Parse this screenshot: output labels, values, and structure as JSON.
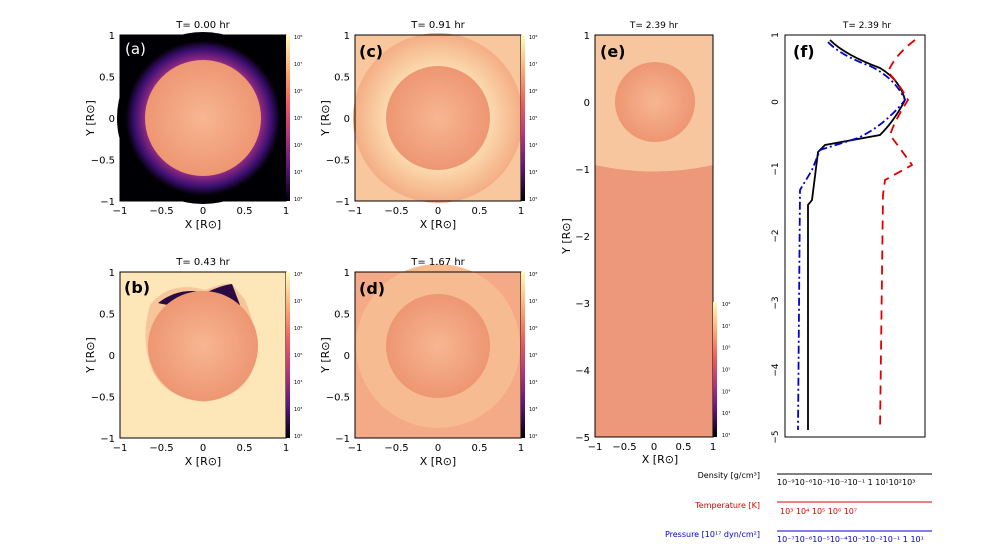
{
  "panels": {
    "a": {
      "label": "(a)",
      "title": "T= 0.00 hr"
    },
    "b": {
      "label": "(b)",
      "title": "T= 0.43 hr"
    },
    "c": {
      "label": "(c)",
      "title": "T= 0.91 hr"
    },
    "d": {
      "label": "(d)",
      "title": "T= 1.67 hr"
    },
    "e": {
      "label": "(e)",
      "title": "T= 2.39 hr"
    },
    "f": {
      "label": "(f)",
      "title": "T= 2.39 hr"
    }
  },
  "axes": {
    "x_label": "X [R",
    "y_label": "Y [R",
    "sun_symbol": "⊙",
    "x_ticks": [
      "−1",
      "−0.5",
      "0",
      "0.5",
      "1"
    ],
    "y_ticks": [
      "1",
      "0.5",
      "0",
      "−0.5",
      "−1"
    ],
    "e_y_ticks": [
      "1",
      "0",
      "−1",
      "−2",
      "−3",
      "−4",
      "−5"
    ],
    "f_y_ticks": [
      "1",
      "0",
      "−1",
      "−2",
      "−3",
      "−4",
      "−5"
    ]
  },
  "colorbar": {
    "ticks": [
      "10⁸",
      "10⁷",
      "10⁶",
      "10⁵",
      "10⁴",
      "10³",
      "10²"
    ]
  },
  "legend": {
    "density": "Density [g/cm³]",
    "density_ticks": "10⁻⁹10⁻⁶10⁻³10⁻²10⁻¹ 1  10¹10²10³",
    "temperature": "Temperature [K]",
    "temperature_ticks": "10³    10⁴    10⁵    10⁶    10⁷",
    "pressure": "Pressure [10¹⁷ dyn/cm²]",
    "pressure_ticks": "10⁻⁷10⁻⁶10⁻⁵10⁻⁴10⁻³10⁻²10⁻¹ 1  10¹"
  },
  "colors": {
    "density": "#000000",
    "temperature": "#e00000",
    "pressure": "#0000d0",
    "bg_low": "#000004",
    "bg_mid": "#8c2981",
    "bg_high": "#fcfdbf",
    "sun": "#f3a585"
  }
}
